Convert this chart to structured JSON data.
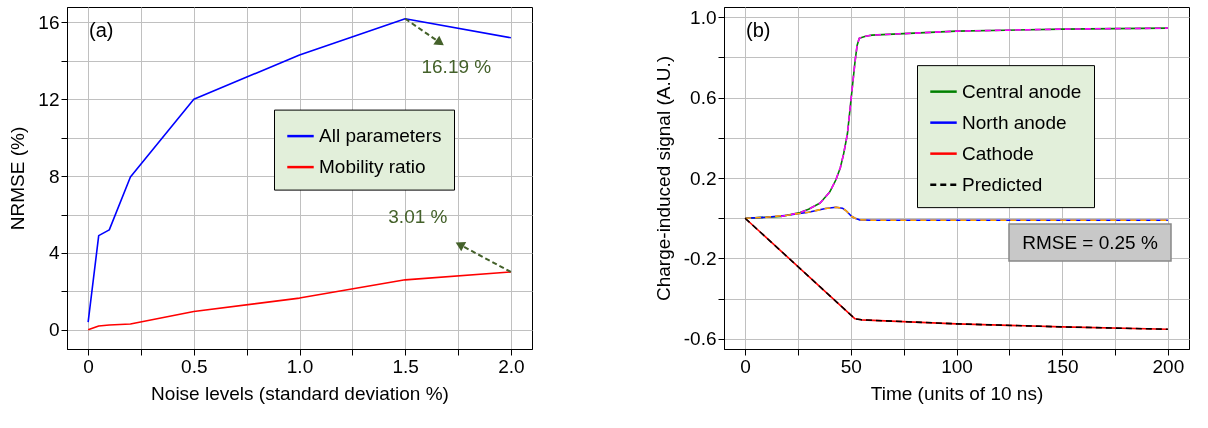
{
  "chart_data": [
    {
      "type": "line",
      "xlabel": "Noise levels (standard deviation %)",
      "ylabel": "NRMSE (%)",
      "x": [
        0,
        0.05,
        0.1,
        0.2,
        0.5,
        1.0,
        1.5,
        2.0
      ],
      "series": [
        {
          "name": "All parameters",
          "color": "#0000ff",
          "values": [
            0.4,
            4.9,
            5.2,
            7.95,
            12.0,
            14.3,
            16.19,
            15.2
          ]
        },
        {
          "name": "Mobility ratio",
          "color": "#ff0000",
          "values": [
            0,
            0.2,
            0.25,
            0.3,
            0.95,
            1.65,
            2.6,
            3.01
          ]
        }
      ],
      "xlim": [
        -0.1,
        2.1
      ],
      "ylim": [
        -1,
        16.8
      ],
      "xticks": [
        0,
        {
          "value": 0.25,
          "label": null
        },
        0.5,
        {
          "value": 0.75,
          "label": null
        },
        {
          "value": 1,
          "label": "1.0"
        },
        {
          "value": 1.25,
          "label": null
        },
        1.5,
        {
          "value": 1.75,
          "label": null
        },
        {
          "value": 2,
          "label": "2.0"
        }
      ],
      "yticks": [
        0,
        {
          "value": 2,
          "label": null
        },
        4,
        {
          "value": 6,
          "label": null
        },
        8,
        {
          "value": 10,
          "label": null
        },
        12,
        {
          "value": 14,
          "label": null
        },
        16
      ],
      "grid": true,
      "legend": "right",
      "annotations": [
        "(a)",
        {
          "text": "16.19 %",
          "x": 1.5,
          "y": 16.19
        },
        {
          "text": "3.01 %",
          "x": 2.0,
          "y": 3.01
        }
      ]
    },
    {
      "type": "line",
      "xlabel": "Time (units of 10 ns)",
      "ylabel": "Charge-induced signal (A.U.)",
      "series": [
        {
          "name": "Central anode",
          "color": "#008000",
          "x": [
            0,
            10,
            17,
            26,
            30,
            35.5,
            40,
            42.9,
            45,
            46.6,
            48.4,
            50.3,
            52,
            53,
            54,
            57,
            60,
            80,
            100,
            150,
            200
          ],
          "values": [
            0,
            0.005,
            0.009,
            0.028,
            0.045,
            0.076,
            0.13,
            0.19,
            0.25,
            0.32,
            0.42,
            0.61,
            0.78,
            0.86,
            0.895,
            0.905,
            0.91,
            0.92,
            0.93,
            0.94,
            0.945
          ]
        },
        {
          "name": "North anode",
          "color": "#0000ff",
          "x": [
            0,
            10,
            20,
            30,
            38,
            43,
            46,
            48,
            50.3,
            52,
            54,
            60,
            100,
            150,
            200
          ],
          "values": [
            0,
            0.005,
            0.015,
            0.03,
            0.048,
            0.055,
            0.05,
            0.035,
            0.01,
            0.0,
            -0.008,
            -0.01,
            -0.01,
            -0.01,
            -0.01
          ]
        },
        {
          "name": "Cathode",
          "color": "#ff0000",
          "x": [
            0,
            52,
            55,
            100,
            150,
            200
          ],
          "values": [
            0,
            -0.5,
            -0.505,
            -0.525,
            -0.54,
            -0.552
          ]
        },
        {
          "color": "#ff00ff",
          "line_style": "dashed",
          "x": [
            17,
            26,
            30,
            35.5,
            40,
            42.9,
            45,
            46.6,
            48.4,
            50.3,
            52,
            53,
            54,
            57,
            60,
            80,
            100,
            150,
            200
          ],
          "values": [
            0.009,
            0.028,
            0.045,
            0.076,
            0.13,
            0.19,
            0.25,
            0.32,
            0.42,
            0.61,
            0.78,
            0.86,
            0.895,
            0.905,
            0.91,
            0.92,
            0.93,
            0.94,
            0.945
          ]
        },
        {
          "color": "#ffa500",
          "line_style": "dashed",
          "x": [
            0,
            10,
            20,
            30,
            38,
            43,
            46,
            48,
            50.3,
            52,
            54,
            60,
            100,
            150,
            200
          ],
          "values": [
            0,
            0.005,
            0.015,
            0.03,
            0.048,
            0.055,
            0.05,
            0.035,
            0.01,
            0.0,
            -0.008,
            -0.01,
            -0.01,
            -0.01,
            -0.01
          ]
        },
        {
          "name": "Predicted",
          "color": "#000000",
          "line_style": "dashed",
          "x": [
            0,
            52,
            55,
            100,
            150,
            200
          ],
          "values": [
            0,
            -0.5,
            -0.505,
            -0.525,
            -0.54,
            -0.552
          ]
        }
      ],
      "xlim": [
        -10,
        210
      ],
      "ylim": [
        -0.65,
        1.05
      ],
      "xticks": [
        0,
        {
          "value": 25,
          "label": null
        },
        50,
        {
          "value": 75,
          "label": null
        },
        100,
        {
          "value": 125,
          "label": null
        },
        150,
        {
          "value": 175,
          "label": null
        },
        200
      ],
      "yticks": [
        -0.6,
        {
          "value": -0.4,
          "label": null
        },
        -0.2,
        {
          "value": 0,
          "label": null
        },
        0.2,
        {
          "value": 0.4,
          "label": null
        },
        0.6,
        {
          "value": 0.8,
          "label": null
        },
        {
          "value": 1,
          "label": "1.0"
        }
      ],
      "grid": true,
      "legend": "top right",
      "annotations": [
        "(b)",
        "RMSE = 0.25 %"
      ]
    }
  ]
}
